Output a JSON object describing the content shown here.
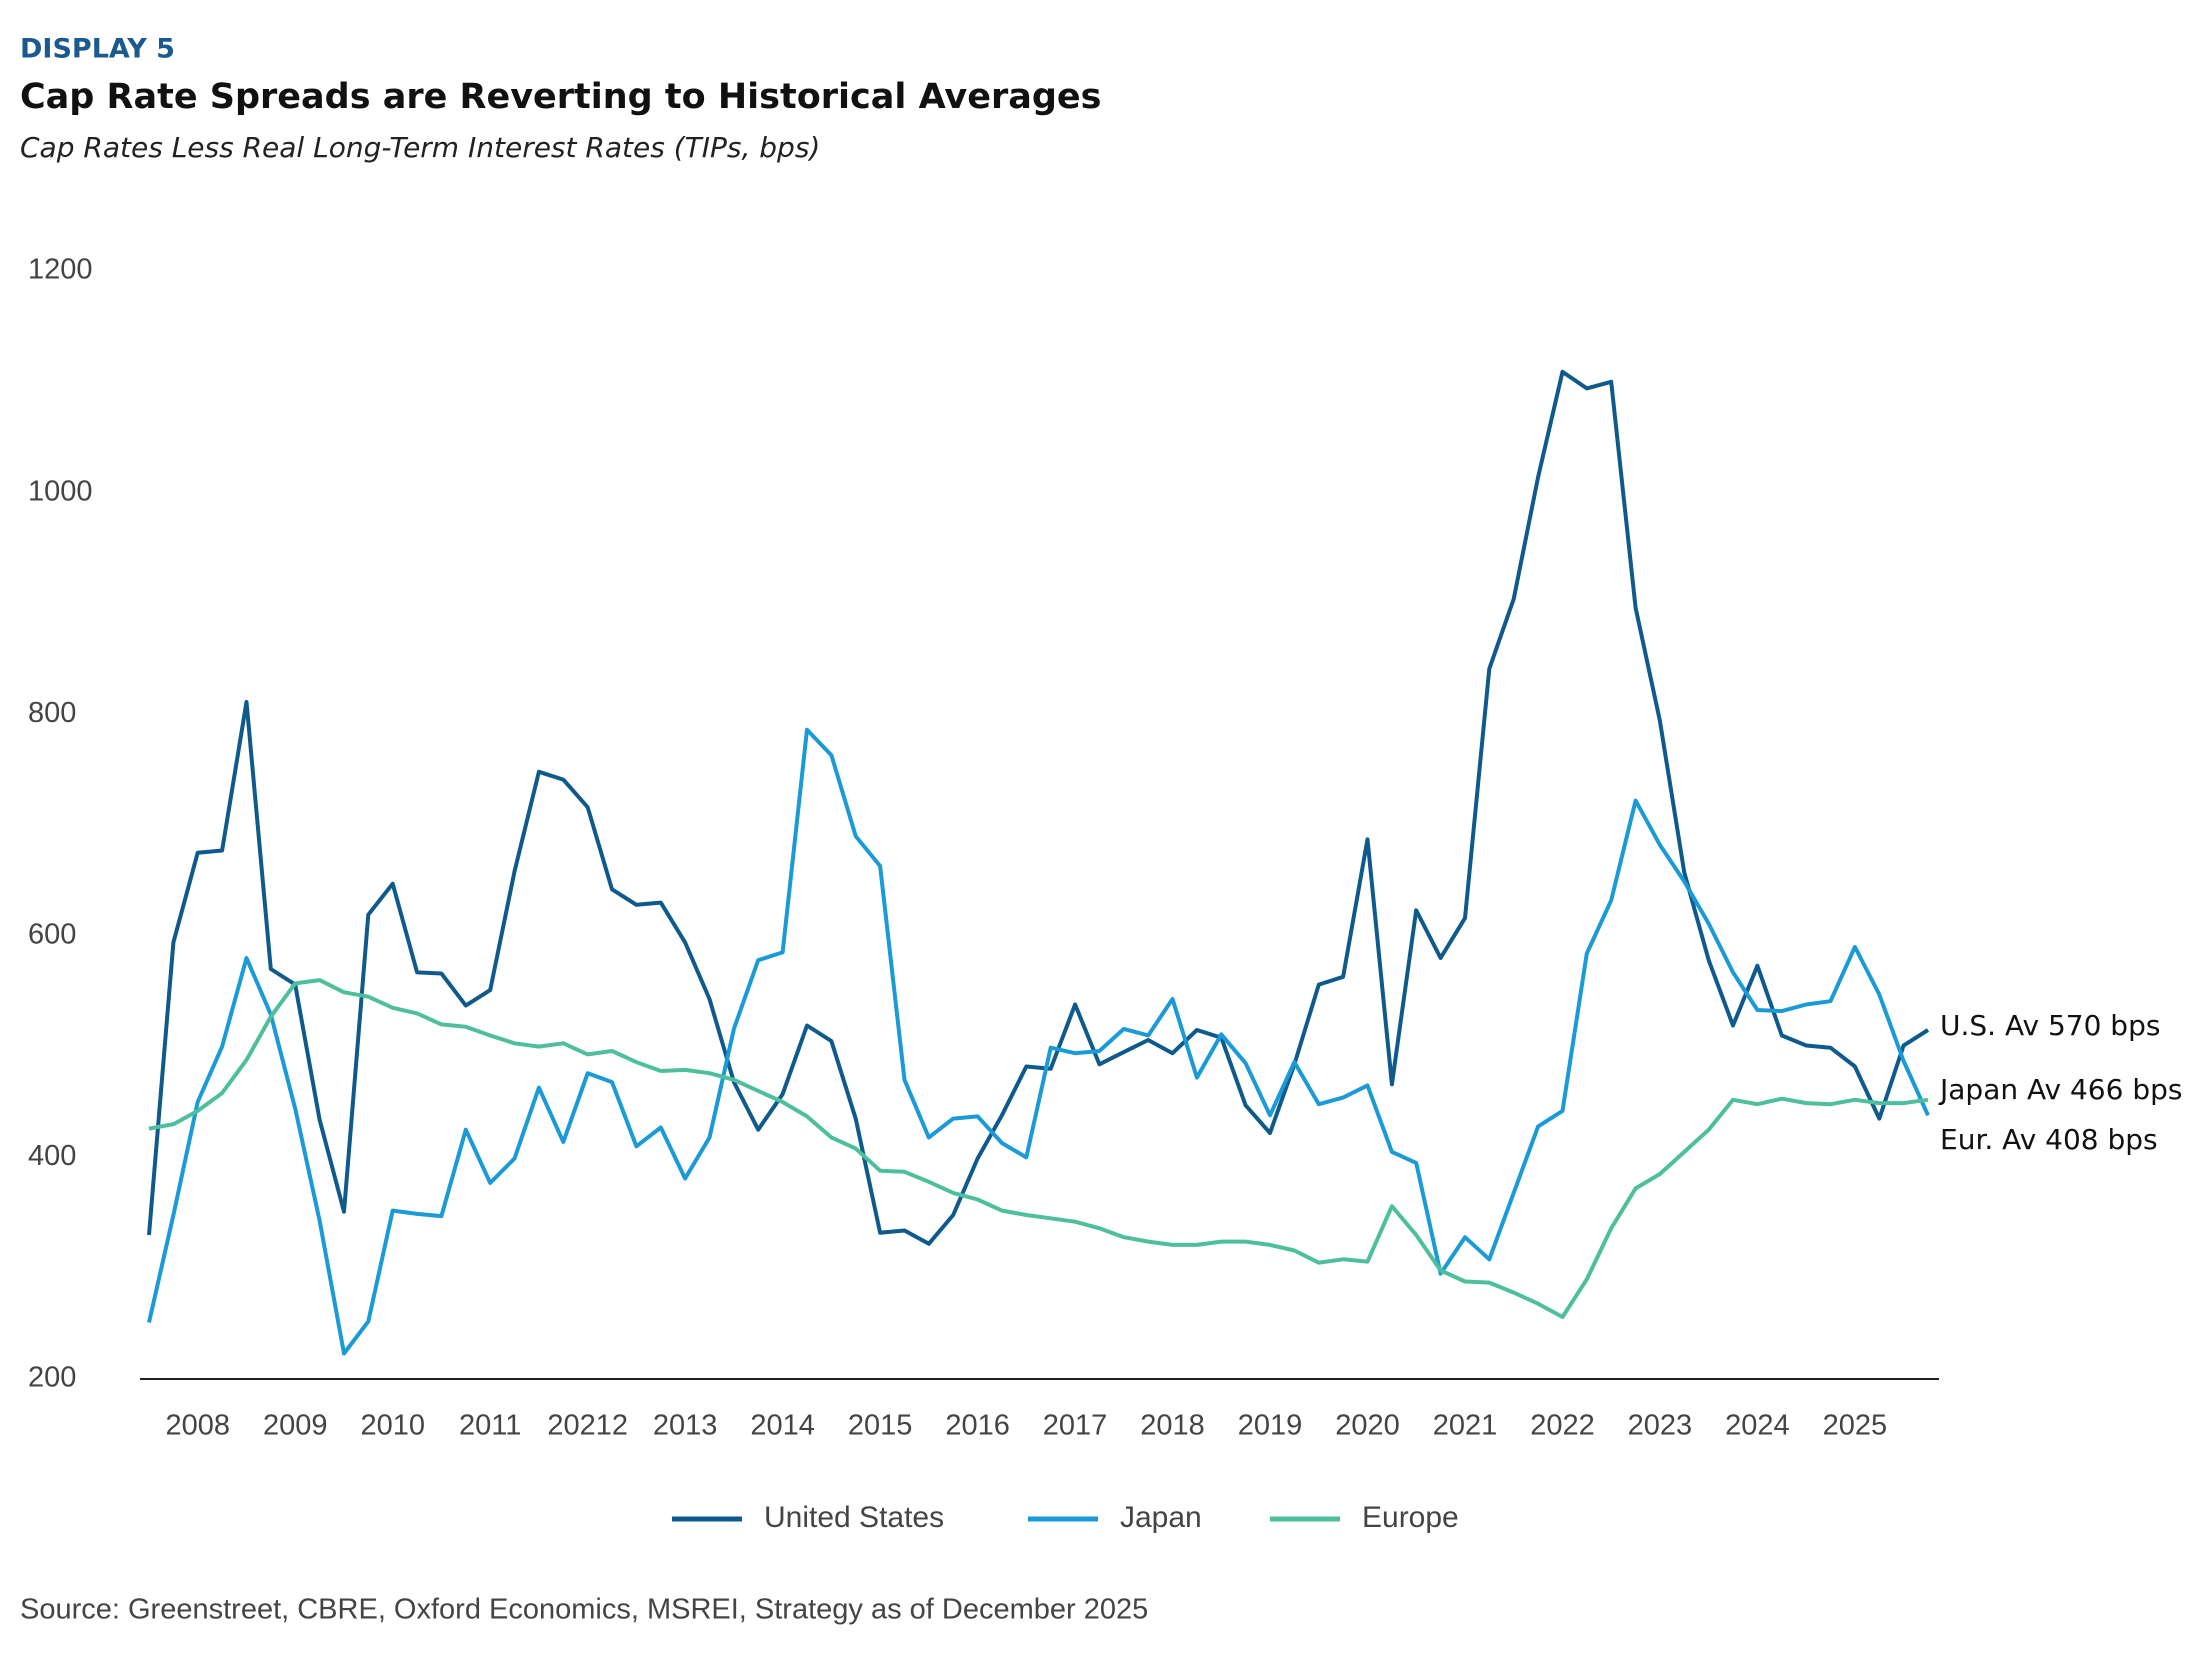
{
  "chart_data": {
    "type": "line",
    "label": "DISPLAY 5",
    "title": "Cap Rate Spreads are Reverting to Historical Averages",
    "subtitle": "Cap Rates Less Real Long-Term Interest Rates (TIPs, bps)",
    "source": "Source: Greenstreet, CBRE, Oxford Economics, MSREI, Strategy as of December 2025",
    "categories": [
      null,
      null,
      "2008",
      null,
      null,
      null,
      "2009",
      null,
      null,
      null,
      "2010",
      null,
      null,
      null,
      "2011",
      null,
      null,
      null,
      "20212",
      null,
      null,
      null,
      "2013",
      null,
      null,
      null,
      "2014",
      null,
      null,
      null,
      "2015",
      null,
      null,
      null,
      "2016",
      null,
      null,
      null,
      "2017",
      null,
      null,
      null,
      "2018",
      null,
      null,
      null,
      "2019",
      null,
      null,
      null,
      "2020",
      null,
      null,
      null,
      "2021",
      null,
      null,
      null,
      "2022",
      null,
      null,
      null,
      "2023",
      null,
      null,
      null,
      "2024",
      null,
      null,
      null,
      "2025",
      null,
      null,
      null
    ],
    "series": [
      {
        "name": "United States",
        "color": "#0f5a8c",
        "values": [
          330,
          594,
          675,
          677,
          811,
          570,
          556,
          434,
          351,
          619,
          647,
          567,
          566,
          537,
          551,
          658,
          748,
          741,
          716,
          642,
          628,
          630,
          594,
          543,
          468,
          425,
          457,
          519,
          505,
          435,
          332,
          334,
          322,
          348,
          399,
          438,
          482,
          480,
          538,
          484,
          495,
          506,
          494,
          515,
          508,
          447,
          422,
          484,
          556,
          563,
          687,
          466,
          623,
          580,
          616,
          841,
          904,
          1014,
          1109,
          1094,
          1100,
          896,
          794,
          657,
          578,
          519,
          573,
          510,
          501,
          499,
          482,
          435,
          501,
          515
        ]
      },
      {
        "name": "Japan",
        "color": "#1a9ad6",
        "values": [
          251,
          348,
          450,
          500,
          580,
          529,
          444,
          343,
          223,
          252,
          352,
          349,
          347,
          425,
          377,
          399,
          463,
          414,
          476,
          468,
          410,
          427,
          381,
          418,
          516,
          578,
          585,
          786,
          763,
          690,
          663,
          470,
          418,
          435,
          437,
          413,
          400,
          499,
          494,
          496,
          516,
          510,
          543,
          472,
          511,
          485,
          438,
          486,
          448,
          454,
          465,
          405,
          395,
          295,
          328,
          308,
          368,
          428,
          442,
          584,
          632,
          722,
          682,
          649,
          611,
          567,
          533,
          532,
          538,
          541,
          590,
          547,
          487,
          438
        ]
      },
      {
        "name": "Europe",
        "color": "#4dbf9c",
        "values": [
          426,
          430,
          442,
          458,
          488,
          527,
          557,
          560,
          549,
          545,
          535,
          530,
          520,
          518,
          510,
          503,
          500,
          503,
          493,
          496,
          486,
          478,
          479,
          476,
          470,
          460,
          450,
          437,
          418,
          408,
          388,
          387,
          378,
          368,
          362,
          352,
          348,
          345,
          342,
          336,
          328,
          324,
          321,
          321,
          324,
          324,
          321,
          316,
          305,
          308,
          306,
          356,
          330,
          298,
          288,
          287,
          278,
          268,
          256,
          290,
          336,
          372,
          385,
          405,
          425,
          452,
          448,
          453,
          449,
          448,
          452,
          449,
          449,
          452
        ]
      }
    ],
    "annotations": [
      "U.S. Av 570 bps",
      "Japan Av 466 bps",
      "Eur. Av 408 bps"
    ],
    "ylim": [
      200,
      1200
    ],
    "yticks": [
      200,
      400,
      600,
      800,
      1000,
      1200
    ],
    "grid": false,
    "legend": "bottom"
  }
}
